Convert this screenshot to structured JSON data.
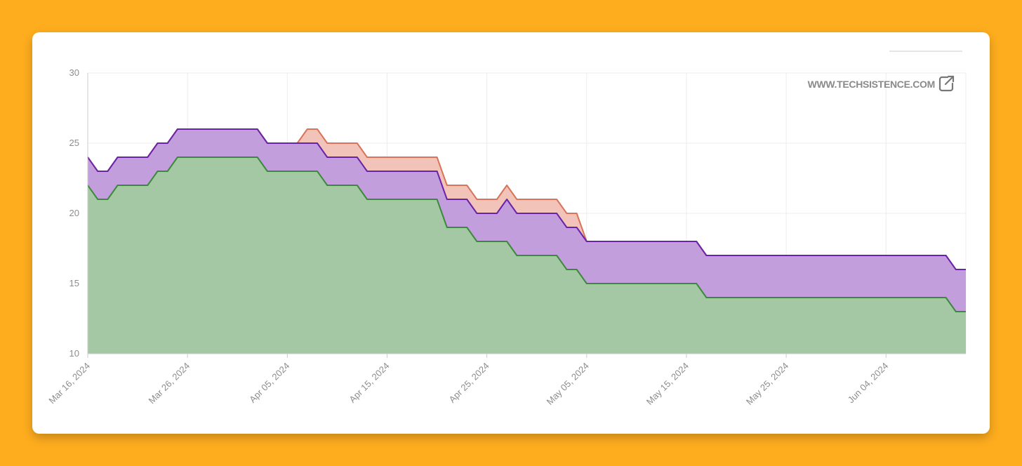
{
  "watermark": {
    "text": "WWW.TECHSISTENCE.COM",
    "icon": "external-link-icon"
  },
  "colors": {
    "background": "#FEAD1E",
    "series_green": "#3A8A3A",
    "series_green_fill": "#A3C8A3",
    "series_purple": "#6A22A8",
    "series_purple_fill": "#C39EDD",
    "series_red": "#D9735A",
    "series_red_fill": "#F2C3B8"
  },
  "chart_data": {
    "type": "area",
    "stacked": true,
    "x_unit": "day",
    "xlim": [
      "Mar 16, 2024",
      "Jun 12, 2024"
    ],
    "ylim": [
      10,
      30
    ],
    "yticks": [
      10,
      15,
      20,
      25,
      30
    ],
    "xticks": [
      "Mar 16, 2024",
      "Mar 26, 2024",
      "Apr 05, 2024",
      "Apr 15, 2024",
      "Apr 25, 2024",
      "May 05, 2024",
      "May 15, 2024",
      "May 25, 2024",
      "Jun 04, 2024"
    ],
    "grid": true,
    "x": [
      "Mar 16, 2024",
      "Mar 17, 2024",
      "Mar 18, 2024",
      "Mar 19, 2024",
      "Mar 20, 2024",
      "Mar 21, 2024",
      "Mar 22, 2024",
      "Mar 23, 2024",
      "Mar 24, 2024",
      "Mar 25, 2024",
      "Mar 26, 2024",
      "Mar 27, 2024",
      "Mar 28, 2024",
      "Mar 29, 2024",
      "Mar 30, 2024",
      "Mar 31, 2024",
      "Apr 01, 2024",
      "Apr 02, 2024",
      "Apr 03, 2024",
      "Apr 04, 2024",
      "Apr 05, 2024",
      "Apr 06, 2024",
      "Apr 07, 2024",
      "Apr 08, 2024",
      "Apr 09, 2024",
      "Apr 10, 2024",
      "Apr 11, 2024",
      "Apr 12, 2024",
      "Apr 13, 2024",
      "Apr 14, 2024",
      "Apr 15, 2024",
      "Apr 16, 2024",
      "Apr 17, 2024",
      "Apr 18, 2024",
      "Apr 19, 2024",
      "Apr 20, 2024",
      "Apr 21, 2024",
      "Apr 22, 2024",
      "Apr 23, 2024",
      "Apr 24, 2024",
      "Apr 25, 2024",
      "Apr 26, 2024",
      "Apr 27, 2024",
      "Apr 28, 2024",
      "Apr 29, 2024",
      "Apr 30, 2024",
      "May 01, 2024",
      "May 02, 2024",
      "May 03, 2024",
      "May 04, 2024",
      "May 05, 2024",
      "May 06, 2024",
      "May 07, 2024",
      "May 08, 2024",
      "May 09, 2024",
      "May 10, 2024",
      "May 11, 2024",
      "May 12, 2024",
      "May 13, 2024",
      "May 14, 2024",
      "May 15, 2024",
      "May 16, 2024",
      "May 17, 2024",
      "May 18, 2024",
      "May 19, 2024",
      "May 20, 2024",
      "May 21, 2024",
      "May 22, 2024",
      "May 23, 2024",
      "May 24, 2024",
      "May 25, 2024",
      "May 26, 2024",
      "May 27, 2024",
      "May 28, 2024",
      "May 29, 2024",
      "May 30, 2024",
      "May 31, 2024",
      "Jun 01, 2024",
      "Jun 02, 2024",
      "Jun 03, 2024",
      "Jun 04, 2024",
      "Jun 05, 2024",
      "Jun 06, 2024",
      "Jun 07, 2024",
      "Jun 08, 2024",
      "Jun 09, 2024",
      "Jun 10, 2024",
      "Jun 11, 2024",
      "Jun 12, 2024"
    ],
    "series": [
      {
        "values": [
          22,
          21,
          21,
          22,
          22,
          22,
          22,
          23,
          23,
          24,
          24,
          24,
          24,
          24,
          24,
          24,
          24,
          24,
          23,
          23,
          23,
          23,
          23,
          23,
          22,
          22,
          22,
          22,
          21,
          21,
          21,
          21,
          21,
          21,
          21,
          21,
          19,
          19,
          19,
          18,
          18,
          18,
          18,
          17,
          17,
          17,
          17,
          17,
          16,
          16,
          15,
          15,
          15,
          15,
          15,
          15,
          15,
          15,
          15,
          15,
          15,
          15,
          14,
          14,
          14,
          14,
          14,
          14,
          14,
          14,
          14,
          14,
          14,
          14,
          14,
          14,
          14,
          14,
          14,
          14,
          14,
          14,
          14,
          14,
          14,
          14,
          14,
          13,
          13
        ]
      },
      {
        "values": [
          24,
          23,
          23,
          24,
          24,
          24,
          24,
          25,
          25,
          26,
          26,
          26,
          26,
          26,
          26,
          26,
          26,
          26,
          25,
          25,
          25,
          25,
          25,
          25,
          24,
          24,
          24,
          24,
          23,
          23,
          23,
          23,
          23,
          23,
          23,
          23,
          21,
          21,
          21,
          20,
          20,
          20,
          21,
          20,
          20,
          20,
          20,
          20,
          19,
          19,
          18,
          18,
          18,
          18,
          18,
          18,
          18,
          18,
          18,
          18,
          18,
          18,
          17,
          17,
          17,
          17,
          17,
          17,
          17,
          17,
          17,
          17,
          17,
          17,
          17,
          17,
          17,
          17,
          17,
          17,
          17,
          17,
          17,
          17,
          17,
          17,
          17,
          16,
          16
        ]
      },
      {
        "values": [
          24,
          23,
          23,
          24,
          24,
          24,
          24,
          25,
          25,
          26,
          26,
          26,
          26,
          26,
          26,
          26,
          26,
          26,
          25,
          25,
          25,
          25,
          26,
          26,
          25,
          25,
          25,
          25,
          24,
          24,
          24,
          24,
          24,
          24,
          24,
          24,
          22,
          22,
          22,
          21,
          21,
          21,
          22,
          21,
          21,
          21,
          21,
          21,
          20,
          20,
          18,
          18,
          18,
          18,
          18,
          18,
          18,
          18,
          18,
          18,
          18,
          18,
          17,
          17,
          17,
          17,
          17,
          17,
          17,
          17,
          17,
          17,
          17,
          17,
          17,
          17,
          17,
          17,
          17,
          17,
          17,
          17,
          17,
          17,
          17,
          17,
          17,
          16,
          16
        ]
      }
    ]
  }
}
